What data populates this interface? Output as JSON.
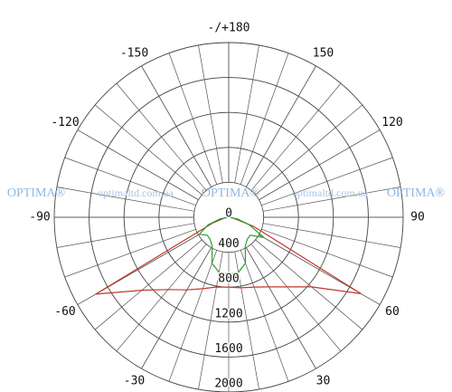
{
  "chart_data": {
    "type": "polar",
    "theta": [
      -90,
      -80,
      -70,
      -60,
      -50,
      -40,
      -30,
      -20,
      -10,
      0,
      10,
      20,
      30,
      40,
      50,
      60,
      70,
      80,
      90
    ],
    "series": [
      {
        "color": "#c0392b",
        "values": [
          0,
          50,
          200,
          1760,
          1300,
          1080,
          960,
          870,
          810,
          800,
          820,
          850,
          920,
          1040,
          1240,
          1750,
          300,
          50,
          0
        ]
      },
      {
        "color": "#2ca02c",
        "values": [
          0,
          100,
          250,
          390,
          320,
          330,
          380,
          560,
          640,
          650,
          640,
          560,
          380,
          330,
          320,
          465,
          250,
          100,
          0
        ]
      }
    ],
    "rlim": [
      0,
      2000
    ],
    "rticks": [
      0,
      400,
      800,
      1200,
      1600,
      2000
    ],
    "thetaticks": [
      -150,
      -120,
      -90,
      -60,
      -30,
      30,
      60,
      90,
      120,
      150,
      {
        "value": 180,
        "label": "-/+180"
      }
    ],
    "watermark": [
      "OPTIMA®",
      "optimaltd.com.ua",
      "OPTIMA®",
      "optimaltd.com.ua",
      "OPTIMA®"
    ]
  }
}
